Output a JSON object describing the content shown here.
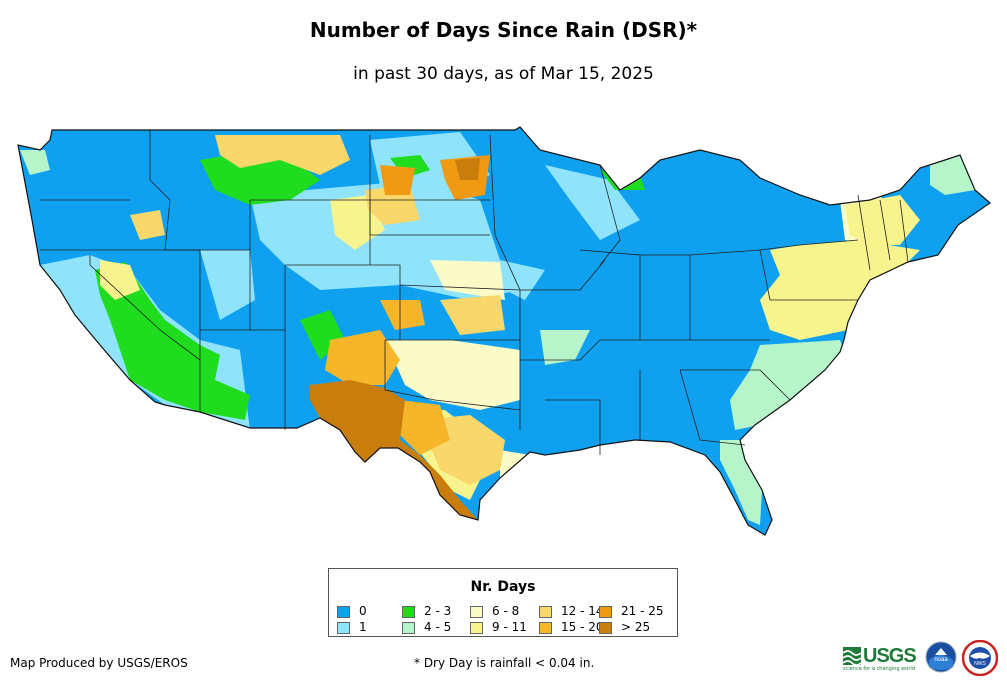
{
  "header": {
    "title": "Number of Days Since Rain (DSR)*",
    "subtitle": "in past 30 days, as of Mar 15, 2025"
  },
  "legend": {
    "title": "Nr. Days",
    "items": [
      {
        "label": "0",
        "color": "#0fa0ef"
      },
      {
        "label": "1",
        "color": "#8fe3fb"
      },
      {
        "label": "2 - 3",
        "color": "#1fdc1f"
      },
      {
        "label": "4 - 5",
        "color": "#b5f5c9"
      },
      {
        "label": "6 - 8",
        "color": "#fbfbc8"
      },
      {
        "label": "9 - 11",
        "color": "#f7f38d"
      },
      {
        "label": "12 - 14",
        "color": "#f9d76a"
      },
      {
        "label": "15 - 20",
        "color": "#f7b62a"
      },
      {
        "label": "21 - 25",
        "color": "#ef9a12"
      },
      {
        "label": "> 25",
        "color": "#c87d0c"
      }
    ]
  },
  "footer": {
    "credit": "Map Produced by USGS/EROS",
    "footnote": "* Dry Day is rainfall < 0.04 in."
  },
  "logos": {
    "usgs": "USGS",
    "usgs_tagline": "science for a changing world",
    "noaa": "noaa",
    "nws": "NWS"
  }
}
